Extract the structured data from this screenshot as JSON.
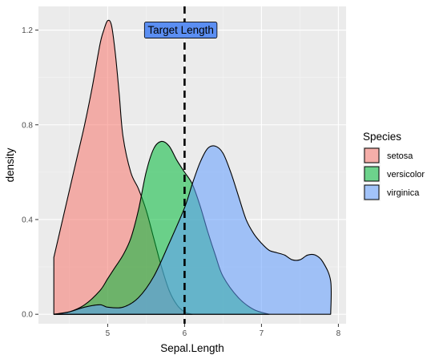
{
  "chart_data": {
    "type": "area",
    "xlabel": "Sepal.Length",
    "ylabel": "density",
    "xlim": [
      4.1,
      8.1
    ],
    "ylim": [
      -0.04,
      1.3
    ],
    "x_ticks": [
      5,
      6,
      7,
      8
    ],
    "x_tick_labels": [
      "5",
      "6",
      "7",
      "8"
    ],
    "y_ticks": [
      0.0,
      0.4,
      0.8,
      1.2
    ],
    "y_tick_labels": [
      "0.0",
      "0.4",
      "0.8",
      "1.2"
    ],
    "grid": true,
    "legend": {
      "title": "Species",
      "position": "right",
      "entries": [
        "setosa",
        "versicolor",
        "virginica"
      ]
    },
    "series": [
      {
        "name": "setosa",
        "color": "#F8766D",
        "points": [
          [
            4.3,
            0.24
          ],
          [
            4.4,
            0.38
          ],
          [
            4.5,
            0.52
          ],
          [
            4.6,
            0.66
          ],
          [
            4.7,
            0.8
          ],
          [
            4.8,
            0.96
          ],
          [
            4.9,
            1.14
          ],
          [
            4.95,
            1.2
          ],
          [
            5.0,
            1.24
          ],
          [
            5.05,
            1.22
          ],
          [
            5.1,
            1.1
          ],
          [
            5.15,
            0.93
          ],
          [
            5.2,
            0.75
          ],
          [
            5.3,
            0.6
          ],
          [
            5.4,
            0.53
          ],
          [
            5.5,
            0.44
          ],
          [
            5.6,
            0.32
          ],
          [
            5.7,
            0.2
          ],
          [
            5.8,
            0.1
          ],
          [
            5.9,
            0.04
          ],
          [
            6.0,
            0.01
          ],
          [
            6.1,
            0.0
          ]
        ]
      },
      {
        "name": "versicolor",
        "color": "#00BA38",
        "points": [
          [
            4.3,
            0.0
          ],
          [
            4.5,
            0.01
          ],
          [
            4.7,
            0.04
          ],
          [
            4.9,
            0.1
          ],
          [
            5.0,
            0.15
          ],
          [
            5.1,
            0.2
          ],
          [
            5.2,
            0.25
          ],
          [
            5.3,
            0.32
          ],
          [
            5.4,
            0.44
          ],
          [
            5.5,
            0.6
          ],
          [
            5.6,
            0.7
          ],
          [
            5.7,
            0.73
          ],
          [
            5.8,
            0.71
          ],
          [
            5.9,
            0.65
          ],
          [
            6.0,
            0.6
          ],
          [
            6.1,
            0.55
          ],
          [
            6.2,
            0.46
          ],
          [
            6.3,
            0.35
          ],
          [
            6.4,
            0.25
          ],
          [
            6.5,
            0.16
          ],
          [
            6.7,
            0.07
          ],
          [
            6.9,
            0.02
          ],
          [
            7.1,
            0.0
          ]
        ]
      },
      {
        "name": "virginica",
        "color": "#619CFF",
        "points": [
          [
            4.3,
            0.0
          ],
          [
            4.5,
            0.01
          ],
          [
            4.7,
            0.03
          ],
          [
            4.9,
            0.04
          ],
          [
            5.0,
            0.03
          ],
          [
            5.2,
            0.03
          ],
          [
            5.4,
            0.07
          ],
          [
            5.6,
            0.16
          ],
          [
            5.8,
            0.3
          ],
          [
            6.0,
            0.45
          ],
          [
            6.1,
            0.55
          ],
          [
            6.2,
            0.64
          ],
          [
            6.3,
            0.7
          ],
          [
            6.4,
            0.71
          ],
          [
            6.5,
            0.68
          ],
          [
            6.6,
            0.6
          ],
          [
            6.7,
            0.5
          ],
          [
            6.8,
            0.4
          ],
          [
            6.9,
            0.34
          ],
          [
            7.0,
            0.3
          ],
          [
            7.1,
            0.27
          ],
          [
            7.2,
            0.26
          ],
          [
            7.3,
            0.25
          ],
          [
            7.4,
            0.23
          ],
          [
            7.5,
            0.23
          ],
          [
            7.6,
            0.25
          ],
          [
            7.7,
            0.25
          ],
          [
            7.8,
            0.22
          ],
          [
            7.9,
            0.14
          ],
          [
            7.9,
            0.0
          ]
        ]
      }
    ],
    "vline": {
      "x": 6.0,
      "style": "dashed",
      "color": "#000000"
    },
    "annotation": {
      "text": "Target Length",
      "x": 5.95,
      "y": 1.2,
      "fill": "#5B8EF2"
    }
  }
}
